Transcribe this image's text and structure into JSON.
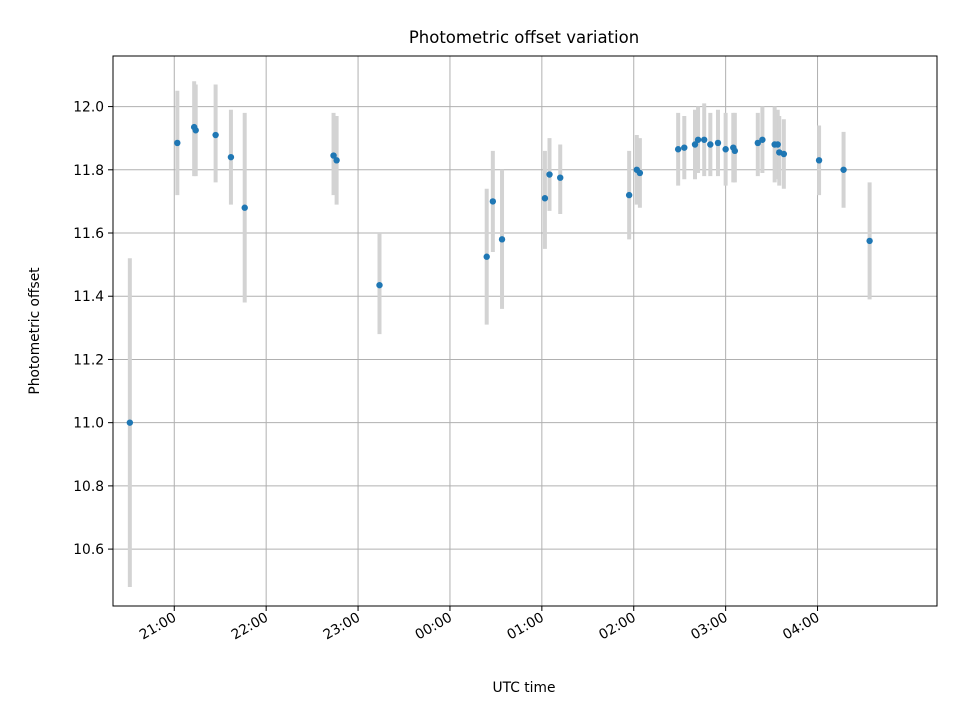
{
  "chart_data": {
    "type": "scatter",
    "title": "Photometric offset variation",
    "xlabel": "UTC time",
    "ylabel": "Photometric offset",
    "x_axis": "time (HH:MM UTC), overnight",
    "xlim": [
      "20:20",
      "05:18"
    ],
    "ylim": [
      10.42,
      12.16
    ],
    "grid": true,
    "x_ticks": [
      "21:00",
      "22:00",
      "23:00",
      "00:00",
      "01:00",
      "02:00",
      "03:00",
      "04:00"
    ],
    "y_ticks": [
      "10.6",
      "10.8",
      "11.0",
      "11.2",
      "11.4",
      "11.6",
      "11.8",
      "12.0"
    ],
    "colors": {
      "point": "#1f77b4",
      "errorbar": "#d3d3d3",
      "grid": "#b0b0b0"
    },
    "points": [
      {
        "x": "20:31",
        "y": 11.0,
        "ylo": 10.48,
        "yhi": 11.52
      },
      {
        "x": "21:02",
        "y": 11.885,
        "ylo": 11.72,
        "yhi": 12.05
      },
      {
        "x": "21:13",
        "y": 11.935,
        "ylo": 11.78,
        "yhi": 12.08
      },
      {
        "x": "21:14",
        "y": 11.925,
        "ylo": 11.78,
        "yhi": 12.07
      },
      {
        "x": "21:27",
        "y": 11.91,
        "ylo": 11.76,
        "yhi": 12.07
      },
      {
        "x": "21:37",
        "y": 11.84,
        "ylo": 11.69,
        "yhi": 11.99
      },
      {
        "x": "21:46",
        "y": 11.68,
        "ylo": 11.38,
        "yhi": 11.98
      },
      {
        "x": "22:44",
        "y": 11.845,
        "ylo": 11.72,
        "yhi": 11.98
      },
      {
        "x": "22:46",
        "y": 11.83,
        "ylo": 11.69,
        "yhi": 11.97
      },
      {
        "x": "23:14",
        "y": 11.435,
        "ylo": 11.28,
        "yhi": 11.6
      },
      {
        "x": "00:24",
        "y": 11.525,
        "ylo": 11.31,
        "yhi": 11.74
      },
      {
        "x": "00:28",
        "y": 11.7,
        "ylo": 11.54,
        "yhi": 11.86
      },
      {
        "x": "00:34",
        "y": 11.58,
        "ylo": 11.36,
        "yhi": 11.8
      },
      {
        "x": "01:02",
        "y": 11.71,
        "ylo": 11.55,
        "yhi": 11.86
      },
      {
        "x": "01:05",
        "y": 11.785,
        "ylo": 11.67,
        "yhi": 11.9
      },
      {
        "x": "01:12",
        "y": 11.775,
        "ylo": 11.66,
        "yhi": 11.88
      },
      {
        "x": "01:57",
        "y": 11.72,
        "ylo": 11.58,
        "yhi": 11.86
      },
      {
        "x": "02:02",
        "y": 11.8,
        "ylo": 11.69,
        "yhi": 11.91
      },
      {
        "x": "02:04",
        "y": 11.79,
        "ylo": 11.68,
        "yhi": 11.9
      },
      {
        "x": "02:29",
        "y": 11.865,
        "ylo": 11.75,
        "yhi": 11.98
      },
      {
        "x": "02:33",
        "y": 11.87,
        "ylo": 11.77,
        "yhi": 11.97
      },
      {
        "x": "02:40",
        "y": 11.88,
        "ylo": 11.77,
        "yhi": 11.99
      },
      {
        "x": "02:42",
        "y": 11.895,
        "ylo": 11.79,
        "yhi": 12.0
      },
      {
        "x": "02:46",
        "y": 11.895,
        "ylo": 11.78,
        "yhi": 12.01
      },
      {
        "x": "02:50",
        "y": 11.88,
        "ylo": 11.78,
        "yhi": 11.98
      },
      {
        "x": "02:55",
        "y": 11.885,
        "ylo": 11.78,
        "yhi": 11.99
      },
      {
        "x": "03:00",
        "y": 11.865,
        "ylo": 11.75,
        "yhi": 11.98
      },
      {
        "x": "03:05",
        "y": 11.87,
        "ylo": 11.76,
        "yhi": 11.98
      },
      {
        "x": "03:06",
        "y": 11.86,
        "ylo": 11.76,
        "yhi": 11.98
      },
      {
        "x": "03:21",
        "y": 11.885,
        "ylo": 11.78,
        "yhi": 11.98
      },
      {
        "x": "03:24",
        "y": 11.895,
        "ylo": 11.79,
        "yhi": 12.0
      },
      {
        "x": "03:32",
        "y": 11.88,
        "ylo": 11.76,
        "yhi": 12.0
      },
      {
        "x": "03:34",
        "y": 11.88,
        "ylo": 11.77,
        "yhi": 11.99
      },
      {
        "x": "03:35",
        "y": 11.855,
        "ylo": 11.75,
        "yhi": 11.97
      },
      {
        "x": "03:38",
        "y": 11.85,
        "ylo": 11.74,
        "yhi": 11.96
      },
      {
        "x": "04:01",
        "y": 11.83,
        "ylo": 11.72,
        "yhi": 11.94
      },
      {
        "x": "04:17",
        "y": 11.8,
        "ylo": 11.68,
        "yhi": 11.92
      },
      {
        "x": "04:34",
        "y": 11.575,
        "ylo": 11.39,
        "yhi": 11.76
      }
    ]
  }
}
